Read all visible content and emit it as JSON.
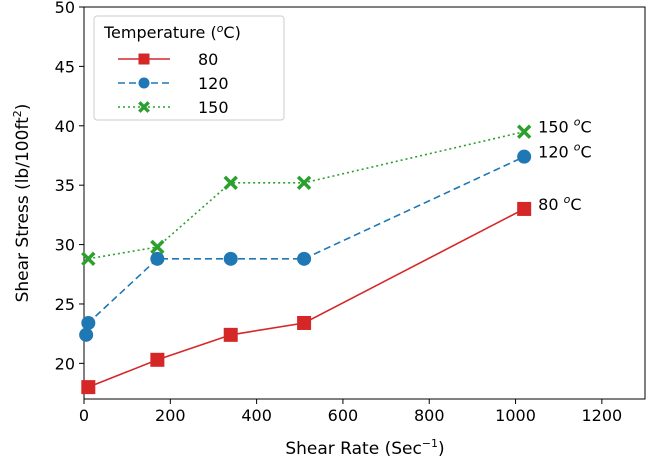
{
  "chart_data": {
    "type": "line",
    "xlabel_main": "Shear Rate (Sec",
    "xlabel_sup": "−1",
    "xlabel_end": ")",
    "ylabel_main": "Shear Stress (lb/100ft",
    "ylabel_sup": "2",
    "ylabel_end": ")",
    "xlim": [
      0,
      1300
    ],
    "ylim": [
      17,
      50
    ],
    "xticks": [
      0,
      200,
      400,
      600,
      800,
      1000,
      1200
    ],
    "yticks": [
      20,
      25,
      30,
      35,
      40,
      45,
      50
    ],
    "legend": {
      "title_main": "Temperature (",
      "title_sup": "o",
      "title_end": "C)",
      "placement": "top-left"
    },
    "series": [
      {
        "name": "80",
        "color": "#d62728",
        "marker": "square",
        "linestyle": "solid",
        "x": [
          10,
          170,
          340,
          510,
          1020
        ],
        "y": [
          18.0,
          20.3,
          22.4,
          23.4,
          33.0
        ],
        "annotation": {
          "main": "80 ",
          "sup": "o",
          "end": "C"
        }
      },
      {
        "name": "120",
        "color": "#1f77b4",
        "marker": "circle",
        "linestyle": "dashed",
        "x": [
          5,
          10,
          170,
          340,
          510,
          1020
        ],
        "y": [
          22.4,
          23.4,
          28.8,
          28.8,
          28.8,
          37.4
        ],
        "annotation": {
          "main": "120 ",
          "sup": "o",
          "end": "C"
        }
      },
      {
        "name": "150",
        "color": "#2ca02c",
        "marker": "x",
        "linestyle": "dotted",
        "x": [
          10,
          170,
          340,
          510,
          1020
        ],
        "y": [
          28.8,
          29.8,
          35.2,
          35.2,
          39.5
        ],
        "annotation": {
          "main": "150 ",
          "sup": "o",
          "end": "C"
        }
      }
    ]
  }
}
